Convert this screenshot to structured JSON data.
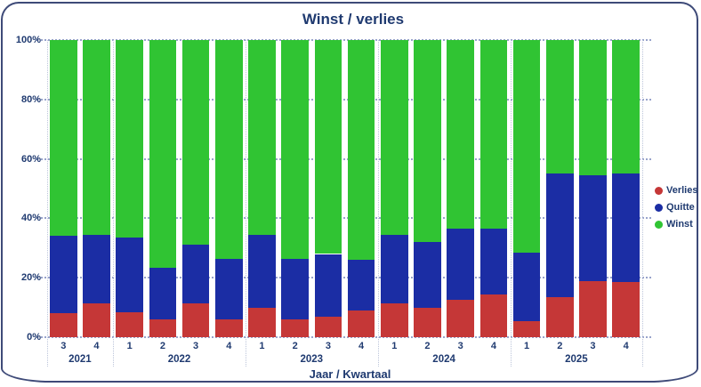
{
  "title": "Winst / verlies",
  "x_axis_title": "Jaar / Kwartaal",
  "y_axis": {
    "ticks": [
      "0%",
      "20%",
      "40%",
      "60%",
      "80%",
      "100%"
    ]
  },
  "legend": {
    "items": [
      {
        "label": "Verlies",
        "color": "#c53737"
      },
      {
        "label": "Quitte",
        "color": "#1b2da4"
      },
      {
        "label": "Winst",
        "color": "#30c433"
      }
    ]
  },
  "colors": {
    "text": "#1f3a70",
    "border": "#3e4a78",
    "gridline": "#98a3cb",
    "verlies": "#c53737",
    "quitte": "#1b2da4",
    "winst": "#30c433"
  },
  "chart_data": {
    "type": "bar",
    "variant": "100-percent-stacked-column",
    "title": "Winst / verlies",
    "xlabel": "Jaar / Kwartaal",
    "ylabel": "",
    "ylim": [
      0,
      100
    ],
    "y_tick_step": 20,
    "grid": "horizontal-dotted",
    "legend_position": "right",
    "x_groups": [
      {
        "year": "2021",
        "quarters": [
          "3",
          "4"
        ]
      },
      {
        "year": "2022",
        "quarters": [
          "1",
          "2",
          "3",
          "4"
        ]
      },
      {
        "year": "2023",
        "quarters": [
          "1",
          "2",
          "3",
          "4"
        ]
      },
      {
        "year": "2024",
        "quarters": [
          "1",
          "2",
          "3",
          "4"
        ]
      },
      {
        "year": "2025",
        "quarters": [
          "1",
          "2",
          "3",
          "4"
        ]
      }
    ],
    "categories": [
      "2021 Q3",
      "2021 Q4",
      "2022 Q1",
      "2022 Q2",
      "2022 Q3",
      "2022 Q4",
      "2023 Q1",
      "2023 Q2",
      "2023 Q3",
      "2023 Q4",
      "2024 Q1",
      "2024 Q2",
      "2024 Q3",
      "2024 Q4",
      "2025 Q1",
      "2025 Q2",
      "2025 Q3",
      "2025 Q4"
    ],
    "series": [
      {
        "name": "Verlies",
        "color": "#c53737",
        "values": [
          8,
          11.5,
          8.5,
          6,
          11.5,
          6,
          10,
          6,
          7,
          9,
          11.5,
          10,
          12.5,
          14.5,
          5.5,
          13.5,
          19,
          18.5
        ]
      },
      {
        "name": "Quitte",
        "color": "#1b2da4",
        "values": [
          26,
          23,
          25,
          17.5,
          19.5,
          20.5,
          24.5,
          20.5,
          21,
          17,
          23,
          22,
          24,
          22,
          23,
          41.5,
          35.5,
          36.5
        ]
      },
      {
        "name": "Winst",
        "color": "#30c433",
        "values": [
          66,
          65.5,
          66.5,
          76.5,
          69,
          73.5,
          65.5,
          73.5,
          72,
          74,
          65.5,
          68,
          63.5,
          63.5,
          71.5,
          45,
          45.5,
          45
        ]
      }
    ]
  }
}
